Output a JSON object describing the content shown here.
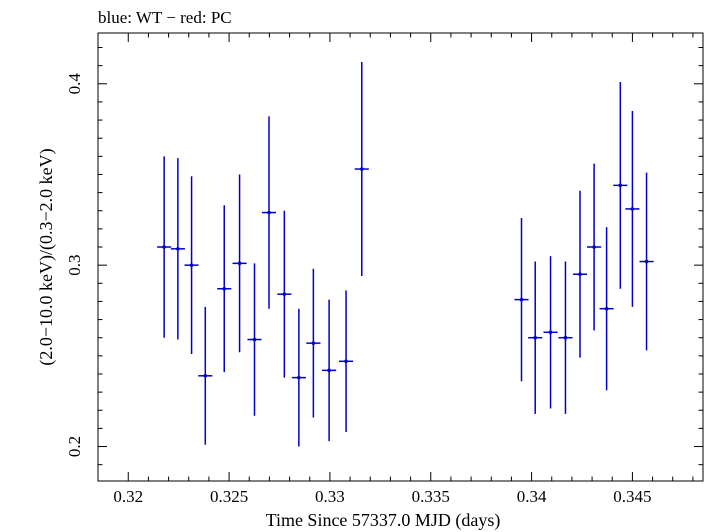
{
  "chart_data": {
    "type": "scatter",
    "title": "blue: WT − red: PC",
    "xlabel": "Time Since 57337.0 MJD (days)",
    "ylabel": "(2.0−10.0 keV)/(0.3−2.0 keV)",
    "xlim": [
      0.3185,
      0.3485
    ],
    "ylim": [
      0.181,
      0.428
    ],
    "x_ticks": [
      {
        "value": 0.32,
        "label": "0.32"
      },
      {
        "value": 0.325,
        "label": "0.325"
      },
      {
        "value": 0.33,
        "label": "0.33"
      },
      {
        "value": 0.335,
        "label": "0.335"
      },
      {
        "value": 0.34,
        "label": "0.34"
      },
      {
        "value": 0.345,
        "label": "0.345"
      }
    ],
    "y_ticks": [
      {
        "value": 0.2,
        "label": "0.2"
      },
      {
        "value": 0.3,
        "label": "0.3"
      },
      {
        "value": 0.4,
        "label": "0.4"
      }
    ],
    "grid": false,
    "series": [
      {
        "color": "#0000cc",
        "points": [
          {
            "x": 0.32178,
            "xerr": 0.00035,
            "y": 0.31,
            "yerr": 0.05
          },
          {
            "x": 0.32246,
            "xerr": 0.00035,
            "y": 0.309,
            "yerr": 0.05
          },
          {
            "x": 0.32314,
            "xerr": 0.00035,
            "y": 0.3,
            "yerr": 0.049
          },
          {
            "x": 0.32382,
            "xerr": 0.00035,
            "y": 0.239,
            "yerr": 0.038
          },
          {
            "x": 0.32476,
            "xerr": 0.00035,
            "y": 0.287,
            "yerr": 0.046
          },
          {
            "x": 0.32552,
            "xerr": 0.00035,
            "y": 0.301,
            "yerr": 0.049
          },
          {
            "x": 0.32626,
            "xerr": 0.00035,
            "y": 0.259,
            "yerr": 0.042
          },
          {
            "x": 0.32698,
            "xerr": 0.00035,
            "y": 0.329,
            "yerr": 0.053
          },
          {
            "x": 0.32774,
            "xerr": 0.00035,
            "y": 0.284,
            "yerr": 0.046
          },
          {
            "x": 0.32846,
            "xerr": 0.00035,
            "y": 0.238,
            "yerr": 0.038
          },
          {
            "x": 0.32918,
            "xerr": 0.00035,
            "y": 0.257,
            "yerr": 0.041
          },
          {
            "x": 0.32996,
            "xerr": 0.00035,
            "y": 0.242,
            "yerr": 0.039
          },
          {
            "x": 0.3308,
            "xerr": 0.00035,
            "y": 0.247,
            "yerr": 0.039
          },
          {
            "x": 0.33158,
            "xerr": 0.00035,
            "y": 0.353,
            "yerr": 0.059
          },
          {
            "x": 0.3395,
            "xerr": 0.00035,
            "y": 0.281,
            "yerr": 0.045
          },
          {
            "x": 0.34018,
            "xerr": 0.00035,
            "y": 0.26,
            "yerr": 0.042
          },
          {
            "x": 0.34094,
            "xerr": 0.00035,
            "y": 0.263,
            "yerr": 0.042
          },
          {
            "x": 0.34168,
            "xerr": 0.00035,
            "y": 0.26,
            "yerr": 0.042
          },
          {
            "x": 0.3424,
            "xerr": 0.00035,
            "y": 0.295,
            "yerr": 0.046
          },
          {
            "x": 0.3431,
            "xerr": 0.00035,
            "y": 0.31,
            "yerr": 0.046
          },
          {
            "x": 0.34372,
            "xerr": 0.00035,
            "y": 0.276,
            "yerr": 0.045
          },
          {
            "x": 0.3444,
            "xerr": 0.00035,
            "y": 0.344,
            "yerr": 0.057
          },
          {
            "x": 0.345,
            "xerr": 0.00035,
            "y": 0.331,
            "yerr": 0.054
          },
          {
            "x": 0.3457,
            "xerr": 0.00035,
            "y": 0.302,
            "yerr": 0.049
          }
        ]
      }
    ]
  }
}
